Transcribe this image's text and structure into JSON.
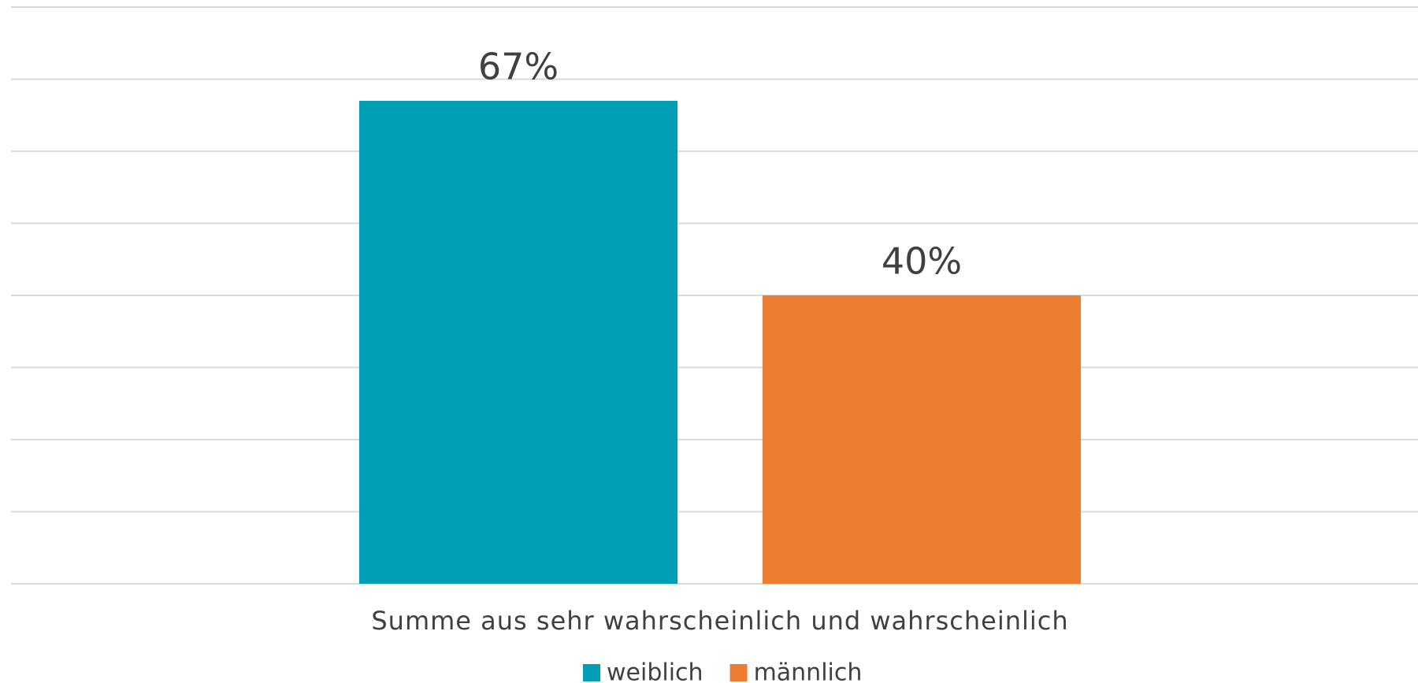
{
  "chart_data": {
    "type": "bar",
    "categories": [
      "Summe aus sehr wahrscheinlich und wahrscheinlich"
    ],
    "series": [
      {
        "name": "weiblich",
        "color": "#009fb5",
        "values": [
          67
        ],
        "value_labels": [
          "67%"
        ]
      },
      {
        "name": "männlich",
        "color": "#ed7d31",
        "values": [
          40
        ],
        "value_labels": [
          "40%"
        ]
      }
    ],
    "ylim": [
      0,
      80
    ],
    "yticks": [
      0,
      10,
      20,
      30,
      40,
      50,
      60,
      70,
      80
    ],
    "grid": true,
    "legend": "bottom"
  }
}
